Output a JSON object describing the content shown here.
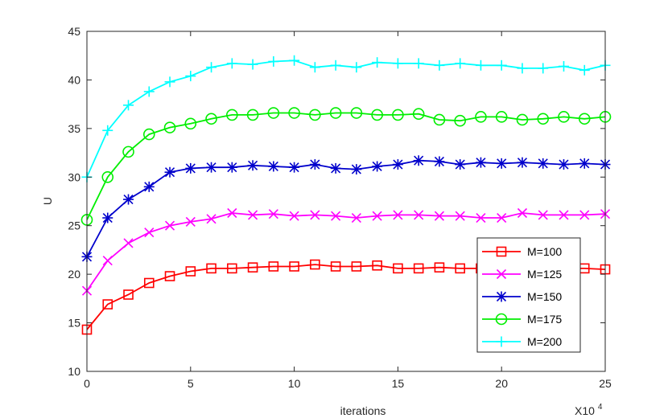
{
  "chart_data": {
    "type": "line",
    "title": "",
    "xlabel": "iterations",
    "ylabel": "U",
    "x_multiplier_label": "X10",
    "x_multiplier_exponent": "4",
    "xlim": [
      0,
      25
    ],
    "ylim": [
      10,
      45
    ],
    "xticks": [
      "0",
      "5",
      "10",
      "15",
      "20",
      "25"
    ],
    "yticks": [
      "10",
      "15",
      "20",
      "25",
      "30",
      "35",
      "40",
      "45"
    ],
    "grid": false,
    "legend_position": "lower-right",
    "x": [
      0,
      1,
      2,
      3,
      4,
      5,
      6,
      7,
      8,
      9,
      10,
      11,
      12,
      13,
      14,
      15,
      16,
      17,
      18,
      19,
      20,
      21,
      22,
      23,
      24,
      25
    ],
    "series": [
      {
        "name": "M=100",
        "color": "#ff0000",
        "marker": "square",
        "values": [
          14.3,
          16.9,
          17.9,
          19.1,
          19.8,
          20.3,
          20.6,
          20.6,
          20.7,
          20.8,
          20.8,
          21.0,
          20.8,
          20.8,
          20.9,
          20.6,
          20.6,
          20.7,
          20.6,
          20.6,
          20.6,
          20.6,
          20.6,
          20.6,
          20.6,
          20.5
        ]
      },
      {
        "name": "M=125",
        "color": "#ff00ff",
        "marker": "x",
        "values": [
          18.3,
          21.4,
          23.2,
          24.3,
          25.0,
          25.4,
          25.7,
          26.3,
          26.1,
          26.2,
          26.0,
          26.1,
          26.0,
          25.8,
          26.0,
          26.1,
          26.1,
          26.0,
          26.0,
          25.8,
          25.8,
          26.3,
          26.1,
          26.1,
          26.1,
          26.2
        ]
      },
      {
        "name": "M=150",
        "color": "#0000cc",
        "marker": "asterisk",
        "values": [
          21.8,
          25.8,
          27.7,
          29.0,
          30.5,
          30.9,
          31.0,
          31.0,
          31.2,
          31.1,
          31.0,
          31.3,
          30.9,
          30.8,
          31.1,
          31.3,
          31.7,
          31.6,
          31.3,
          31.5,
          31.4,
          31.5,
          31.4,
          31.3,
          31.4,
          31.3
        ]
      },
      {
        "name": "M=175",
        "color": "#00ee00",
        "marker": "circle",
        "values": [
          25.6,
          30.0,
          32.6,
          34.4,
          35.1,
          35.5,
          36.0,
          36.4,
          36.4,
          36.6,
          36.6,
          36.4,
          36.6,
          36.6,
          36.4,
          36.4,
          36.5,
          35.9,
          35.8,
          36.2,
          36.2,
          35.9,
          36.0,
          36.2,
          36.0,
          36.2
        ]
      },
      {
        "name": "M=200",
        "color": "#00ffff",
        "marker": "plus",
        "values": [
          30.0,
          34.8,
          37.4,
          38.8,
          39.8,
          40.4,
          41.3,
          41.7,
          41.6,
          41.9,
          42.0,
          41.3,
          41.5,
          41.3,
          41.8,
          41.7,
          41.7,
          41.5,
          41.7,
          41.5,
          41.5,
          41.2,
          41.2,
          41.4,
          41.0,
          41.5
        ]
      }
    ]
  }
}
